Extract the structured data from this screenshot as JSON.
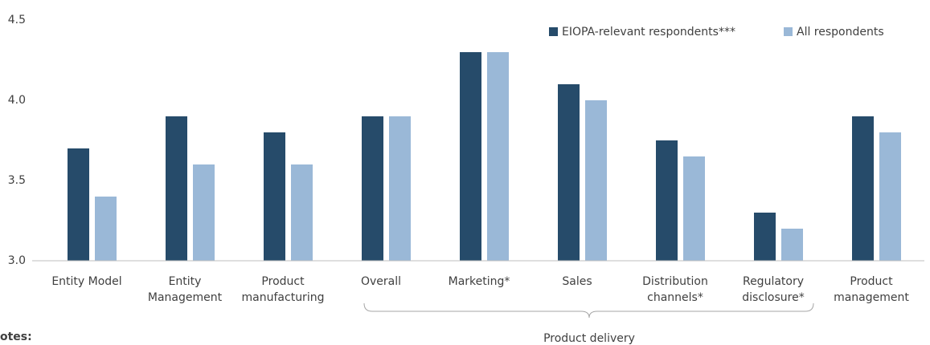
{
  "chart_data": {
    "type": "bar",
    "categories": [
      [
        "Entity Model"
      ],
      [
        "Entity",
        "Management"
      ],
      [
        "Product",
        "manufacturing"
      ],
      [
        "Overall"
      ],
      [
        "Marketing*"
      ],
      [
        "Sales"
      ],
      [
        "Distribution",
        "channels*"
      ],
      [
        "Regulatory",
        "disclosure*"
      ],
      [
        "Product",
        "management"
      ]
    ],
    "series": [
      {
        "name": "EIOPA-relevant respondents***",
        "color": "#264b6a",
        "values": [
          3.7,
          3.9,
          3.8,
          3.9,
          4.3,
          4.1,
          3.75,
          3.3,
          3.9
        ]
      },
      {
        "name": "All respondents",
        "color": "#9ab8d7",
        "values": [
          3.4,
          3.6,
          3.6,
          3.9,
          4.3,
          4.0,
          3.65,
          3.2,
          3.8
        ]
      }
    ],
    "ylim": [
      3.0,
      4.5
    ],
    "yticks": [
      {
        "value": 3.0,
        "label": "3.0"
      },
      3.5,
      {
        "value": 4.0,
        "label": "4.0"
      },
      4.5
    ],
    "legend": "top-right",
    "annotations": [
      "Product delivery"
    ],
    "notes_label": "otes:"
  }
}
